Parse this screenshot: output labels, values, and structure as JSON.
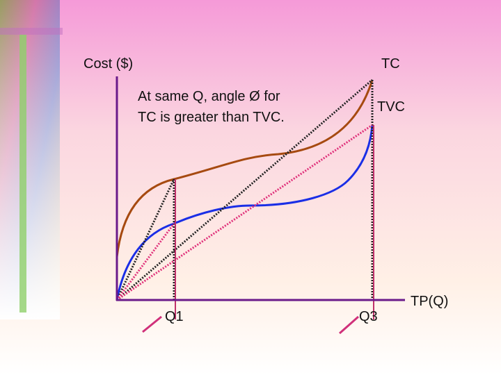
{
  "diagram": {
    "y_axis_label": "Cost ($)",
    "x_axis_label": "TP(Q)",
    "curves": [
      {
        "label": "TC"
      },
      {
        "label": "TVC"
      }
    ],
    "annotation": [
      "At same Q, angle Ø for",
      "TC is greater than TVC."
    ],
    "quantities": [
      "Q1",
      "Q3"
    ]
  }
}
